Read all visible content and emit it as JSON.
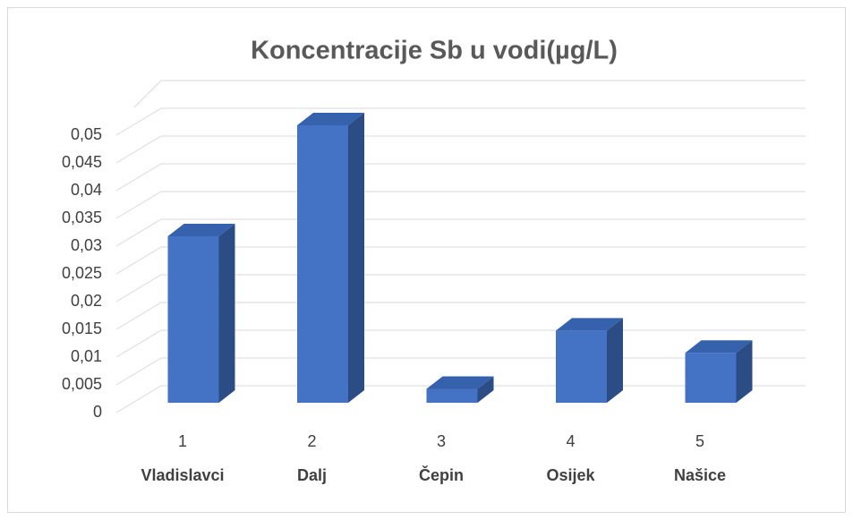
{
  "chart_data": {
    "type": "bar3d",
    "title": "Koncentracije Sb u vodi(µg/L)",
    "categories": [
      "1",
      "2",
      "3",
      "4",
      "5"
    ],
    "category_labels": [
      "Vladislavci",
      "Dalj",
      "Čepin",
      "Osijek",
      "Našice"
    ],
    "values": [
      0.03,
      0.05,
      0.0025,
      0.013,
      0.009
    ],
    "color": "#4472c4",
    "side_color": "#2b4c85",
    "top_color": "#3561ad",
    "ylim": [
      0,
      0.055
    ],
    "yticks": [
      0,
      {
        "value": 0.005,
        "label": "0,005"
      },
      {
        "value": 0.01,
        "label": "0,01"
      },
      {
        "value": 0.015,
        "label": "0,015"
      },
      {
        "value": 0.02,
        "label": "0,02"
      },
      {
        "value": 0.025,
        "label": "0,025"
      },
      {
        "value": 0.03,
        "label": "0,03"
      },
      {
        "value": 0.035,
        "label": "0,035"
      },
      {
        "value": 0.04,
        "label": "0,04"
      },
      {
        "value": 0.045,
        "label": "0,045"
      },
      {
        "value": 0.05,
        "label": "0,05"
      }
    ],
    "grid": true
  }
}
